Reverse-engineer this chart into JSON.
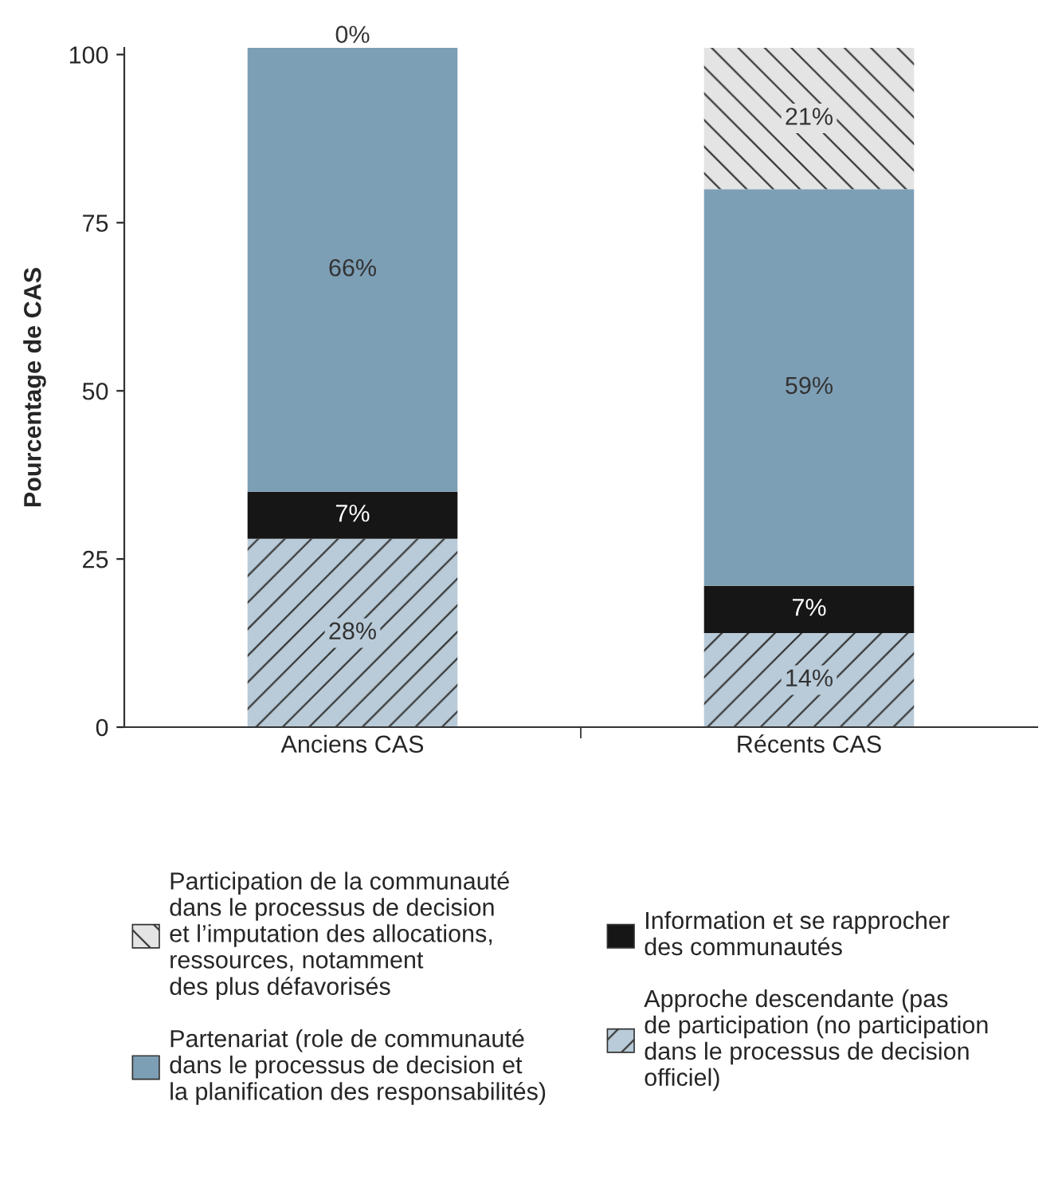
{
  "chart_data": {
    "type": "bar",
    "stacked": true,
    "ylabel": "Pourcentage de CAS",
    "categories": [
      "Anciens CAS",
      "Récents CAS"
    ],
    "series": [
      {
        "name": "Approche descendante (pas\nde participation (no participation\ndans le processus de decision\nofficiel)",
        "color": "#b9cbd8",
        "values": [
          28,
          14
        ],
        "value_labels": [
          "28%",
          "14%"
        ]
      },
      {
        "name": "Information et se rapprocher\ndes communautés",
        "color": "#161616",
        "values": [
          7,
          7
        ],
        "value_labels": [
          "7%",
          "7%"
        ]
      },
      {
        "name": "Partenariat (role de communauté\ndans le processus de decision et\nla planification des responsabilités)",
        "color": "#7d9fb6",
        "values": [
          66,
          59
        ],
        "value_labels": [
          "66%",
          "59%"
        ]
      },
      {
        "name": "Participation de la communauté\ndans le processus de decision\net l’imputation des allocations,\nressources, notamment\ndes plus défavorisés",
        "color": "#e4e4e4",
        "values": [
          0,
          21
        ],
        "value_labels": [
          "0%",
          "21%"
        ]
      }
    ],
    "ylim": [
      0,
      101
    ],
    "yticks": [
      0,
      25,
      50,
      75,
      100
    ],
    "grid": false,
    "legend": "bottom"
  }
}
